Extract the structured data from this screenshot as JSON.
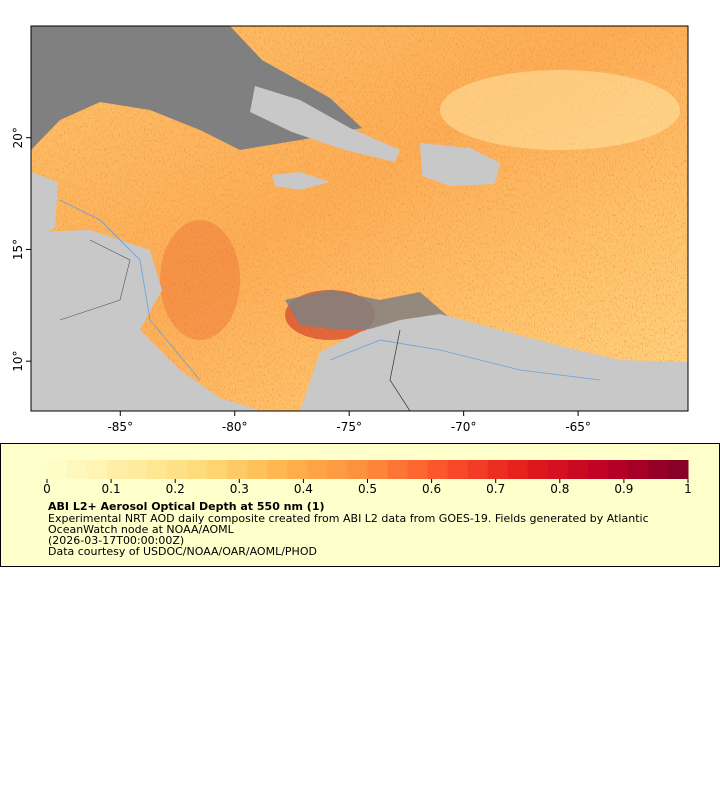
{
  "map": {
    "xlim": [
      -88.9,
      -60.2
    ],
    "ylim": [
      7.77,
      25
    ],
    "xticks": [
      {
        "value": -85,
        "label": "-85°"
      },
      {
        "value": -80,
        "label": "-80°"
      },
      {
        "value": -75,
        "label": "-75°"
      },
      {
        "value": -70,
        "label": "-70°"
      },
      {
        "value": -65,
        "label": "-65°"
      }
    ],
    "yticks": [
      {
        "value": 10,
        "label": "10°"
      },
      {
        "value": 15,
        "label": "15°"
      },
      {
        "value": 20,
        "label": "20°"
      }
    ]
  },
  "colorbar": {
    "range": [
      0,
      1
    ],
    "ticks": [
      0,
      0.1,
      0.2,
      0.3,
      0.4,
      0.5,
      0.6,
      0.7,
      0.8,
      0.9,
      1
    ],
    "colors": [
      "#ffffcc",
      "#ffeda0",
      "#fed976",
      "#feb24c",
      "#fd8d3c",
      "#fc4e2a",
      "#e31a1c",
      "#bd0026",
      "#800026"
    ]
  },
  "legend": {
    "title": "ABI L2+ Aerosol Optical Depth at 550 nm (1)",
    "description": "Experimental NRT AOD daily composite created from ABI L2 data from GOES-19. Fields generated by Atlantic OceanWatch node at NOAA/AOML",
    "date": "(2026-03-17T00:00:00Z)",
    "credit": "Data courtesy of USDOC/NOAA/OAR/AOML/PHOD"
  }
}
